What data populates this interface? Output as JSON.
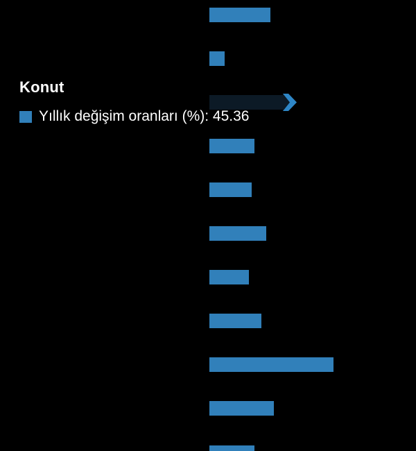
{
  "colors": {
    "background": "#000000",
    "bar": "#3180ba",
    "active_bar": "#0c1a26",
    "active_arrow": "#2e86c6",
    "tooltip_text": "#ffffff"
  },
  "tooltip": {
    "category": "Konut",
    "series_label": "Yıllık değişim oranları (%)",
    "separator": ": ",
    "value": "45.36"
  },
  "chart_data": {
    "type": "bar",
    "orientation": "horizontal",
    "title": "",
    "xlabel": "",
    "ylabel": "",
    "axes_visible": false,
    "gridlines": false,
    "legend_position": "tooltip-only",
    "categories": [
      "",
      "",
      "Konut",
      "",
      "",
      "",
      "",
      "",
      "",
      "",
      ""
    ],
    "series": [
      {
        "name": "Yıllık değişim oranları (%)",
        "color": "#3180ba",
        "values": [
          31.7,
          7.8,
          45.36,
          23.4,
          22.0,
          29.5,
          20.5,
          27.0,
          64.4,
          33.5,
          23.4
        ]
      }
    ],
    "highlighted_index": 2,
    "highlighted_category": "Konut",
    "highlighted_value": 45.36
  }
}
